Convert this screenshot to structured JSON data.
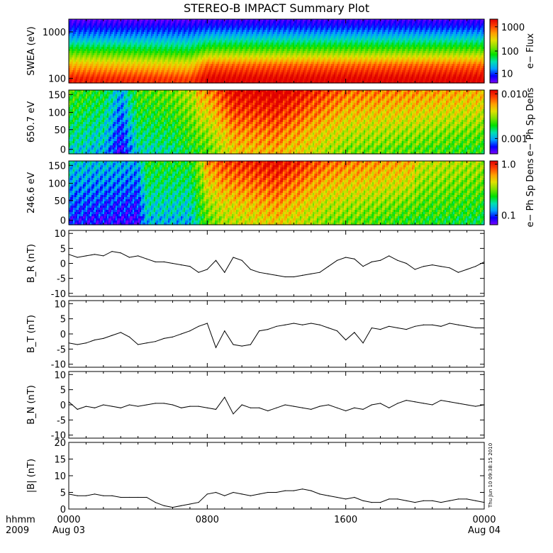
{
  "title": "STEREO-B IMPACT Summary Plot",
  "footer": {
    "hhmm_label": "hhmm",
    "year_label": "2009",
    "x_ticks": [
      "0000",
      "0800",
      "1600",
      "0000"
    ],
    "date_labels": [
      "Aug 03",
      "",
      "",
      "Aug 04"
    ]
  },
  "timestamp_text": "Thu Jun 10 09:38:15 2010",
  "colorscale": [
    "#7a00ff",
    "#0000ff",
    "#00a0ff",
    "#00e0b0",
    "#00e000",
    "#80e000",
    "#e0e000",
    "#ffa000",
    "#ff4000",
    "#e00000"
  ],
  "chart_data": [
    {
      "type": "heatmap",
      "ylabel": "SWEA (eV)",
      "yticks": [
        "1000",
        "100"
      ],
      "colorbar_label": "e− Flux",
      "colorbar_ticks": [
        "1000",
        "100",
        "10"
      ],
      "scale": "log",
      "x_range_hours": [
        0,
        24
      ],
      "profile": [
        {
          "hour": 0,
          "energy_eV": [
            [
              100,
              0.95
            ],
            [
              200,
              0.75
            ],
            [
              400,
              0.5
            ],
            [
              800,
              0.25
            ],
            [
              1600,
              0.08
            ]
          ]
        },
        {
          "hour": 7,
          "energy_eV": [
            [
              100,
              0.9
            ],
            [
              200,
              0.7
            ],
            [
              400,
              0.45
            ],
            [
              800,
              0.25
            ],
            [
              1600,
              0.08
            ]
          ]
        },
        {
          "hour": 8,
          "energy_eV": [
            [
              100,
              1.0
            ],
            [
              200,
              0.85
            ],
            [
              400,
              0.55
            ],
            [
              800,
              0.3
            ],
            [
              1600,
              0.1
            ]
          ]
        },
        {
          "hour": 24,
          "energy_eV": [
            [
              100,
              1.0
            ],
            [
              200,
              0.85
            ],
            [
              400,
              0.55
            ],
            [
              800,
              0.3
            ],
            [
              1600,
              0.1
            ]
          ]
        }
      ]
    },
    {
      "type": "heatmap",
      "ylabel": "650.7 eV",
      "yticks": [
        "150",
        "100",
        "50",
        "0"
      ],
      "colorbar_label": "e− Ph Sp Dens",
      "colorbar_ticks": [
        "0.010",
        "0.001"
      ],
      "scale": "log",
      "x_range_hours": [
        0,
        24
      ],
      "pitch_angle_range": [
        0,
        180
      ],
      "profile": [
        {
          "hour": 0,
          "level": 0.35
        },
        {
          "hour": 2,
          "level": 0.3
        },
        {
          "hour": 3,
          "level": 0.1
        },
        {
          "hour": 4,
          "level": 0.35
        },
        {
          "hour": 6,
          "level": 0.4
        },
        {
          "hour": 8,
          "level": 0.55
        },
        {
          "hour": 9.5,
          "level": 0.75
        },
        {
          "hour": 12,
          "level": 0.8
        },
        {
          "hour": 14,
          "level": 0.7
        },
        {
          "hour": 16,
          "level": 0.6
        },
        {
          "hour": 20,
          "level": 0.55
        },
        {
          "hour": 24,
          "level": 0.5
        }
      ]
    },
    {
      "type": "heatmap",
      "ylabel": "246.6 eV",
      "yticks": [
        "150",
        "100",
        "50",
        "0"
      ],
      "colorbar_label": "e− Ph Sp Dens",
      "colorbar_ticks": [
        "1.0",
        "0.1"
      ],
      "scale": "log",
      "x_range_hours": [
        0,
        24
      ],
      "pitch_angle_range": [
        0,
        180
      ],
      "profile": [
        {
          "hour": 0,
          "level": 0.15
        },
        {
          "hour": 4,
          "level": 0.1
        },
        {
          "hour": 4.5,
          "level": 0.3
        },
        {
          "hour": 7,
          "level": 0.3
        },
        {
          "hour": 8,
          "level": 0.55
        },
        {
          "hour": 9,
          "level": 0.65
        },
        {
          "hour": 12,
          "level": 0.75
        },
        {
          "hour": 15,
          "level": 0.6
        },
        {
          "hour": 20,
          "level": 0.5
        },
        {
          "hour": 24,
          "level": 0.45
        }
      ]
    },
    {
      "type": "line",
      "ylabel": "B_R (nT)",
      "yticks": [
        "10",
        "5",
        "0",
        "-5",
        "-10"
      ],
      "ylim": [
        -11,
        11
      ],
      "x": [
        0,
        0.5,
        1,
        1.5,
        2,
        2.5,
        3,
        3.5,
        4,
        4.5,
        5,
        5.5,
        6,
        6.5,
        7,
        7.5,
        8,
        8.5,
        9,
        9.5,
        10,
        10.5,
        11,
        11.5,
        12,
        12.5,
        13,
        13.5,
        14,
        14.5,
        15,
        15.5,
        16,
        16.5,
        17,
        17.5,
        18,
        18.5,
        19,
        19.5,
        20,
        20.5,
        21,
        21.5,
        22,
        22.5,
        23,
        23.5,
        24
      ],
      "y": [
        3,
        2,
        2.5,
        3,
        2.5,
        4,
        3.5,
        2,
        2.5,
        1.5,
        0.5,
        0.5,
        0,
        -0.5,
        -1,
        -3,
        -2,
        1,
        -3,
        2,
        1,
        -2,
        -3,
        -3.5,
        -4,
        -4.5,
        -4.5,
        -4,
        -3.5,
        -3,
        -1,
        1,
        2,
        1.5,
        -1,
        0.5,
        1,
        2.5,
        1,
        0,
        -2,
        -1,
        -0.5,
        -1,
        -1.5,
        -3,
        -2,
        -1,
        0.5
      ]
    },
    {
      "type": "line",
      "ylabel": "B_T (nT)",
      "yticks": [
        "10",
        "5",
        "0",
        "-5",
        "-10"
      ],
      "ylim": [
        -11,
        11
      ],
      "x": [
        0,
        0.5,
        1,
        1.5,
        2,
        2.5,
        3,
        3.5,
        4,
        4.5,
        5,
        5.5,
        6,
        6.5,
        7,
        7.5,
        8,
        8.5,
        9,
        9.5,
        10,
        10.5,
        11,
        11.5,
        12,
        12.5,
        13,
        13.5,
        14,
        14.5,
        15,
        15.5,
        16,
        16.5,
        17,
        17.5,
        18,
        18.5,
        19,
        19.5,
        20,
        20.5,
        21,
        21.5,
        22,
        22.5,
        23,
        23.5,
        24
      ],
      "y": [
        -3,
        -3.5,
        -3,
        -2,
        -1.5,
        -0.5,
        0.5,
        -1,
        -3.5,
        -3,
        -2.5,
        -1.5,
        -1,
        0,
        1,
        2.5,
        3.5,
        -4.5,
        1,
        -3.5,
        -4,
        -3.5,
        1,
        1.5,
        2.5,
        3,
        3.5,
        3,
        3.5,
        3,
        2,
        1,
        -2,
        0.5,
        -3,
        2,
        1.5,
        2.5,
        2,
        1.5,
        2.5,
        3,
        3,
        2.5,
        3.5,
        3,
        2.5,
        2,
        2
      ]
    },
    {
      "type": "line",
      "ylabel": "B_N (nT)",
      "yticks": [
        "10",
        "5",
        "0",
        "-5",
        "-10"
      ],
      "ylim": [
        -11,
        11
      ],
      "x": [
        0,
        0.5,
        1,
        1.5,
        2,
        2.5,
        3,
        3.5,
        4,
        4.5,
        5,
        5.5,
        6,
        6.5,
        7,
        7.5,
        8,
        8.5,
        9,
        9.5,
        10,
        10.5,
        11,
        11.5,
        12,
        12.5,
        13,
        13.5,
        14,
        14.5,
        15,
        15.5,
        16,
        16.5,
        17,
        17.5,
        18,
        18.5,
        19,
        19.5,
        20,
        20.5,
        21,
        21.5,
        22,
        22.5,
        23,
        23.5,
        24
      ],
      "y": [
        1,
        -1.5,
        -0.5,
        -1,
        0,
        -0.5,
        -1,
        0,
        -0.5,
        0,
        0.5,
        0.5,
        0,
        -1,
        -0.5,
        -0.5,
        -1,
        -1.5,
        2.5,
        -3,
        0,
        -1,
        -1,
        -2,
        -1,
        0,
        -0.5,
        -1,
        -1.5,
        -0.5,
        0,
        -1,
        -2,
        -1,
        -1.5,
        0,
        0.5,
        -1,
        0.5,
        1.5,
        1,
        0.5,
        0,
        1.5,
        1,
        0.5,
        0,
        -0.5,
        0
      ]
    },
    {
      "type": "line",
      "ylabel": "|B| (nT)",
      "yticks": [
        "20",
        "15",
        "10",
        "5",
        "0"
      ],
      "ylim": [
        0,
        20
      ],
      "x": [
        0,
        0.5,
        1,
        1.5,
        2,
        2.5,
        3,
        3.5,
        4,
        4.5,
        5,
        5.5,
        6,
        6.5,
        7,
        7.5,
        8,
        8.5,
        9,
        9.5,
        10,
        10.5,
        11,
        11.5,
        12,
        12.5,
        13,
        13.5,
        14,
        14.5,
        15,
        15.5,
        16,
        16.5,
        17,
        17.5,
        18,
        18.5,
        19,
        19.5,
        20,
        20.5,
        21,
        21.5,
        22,
        22.5,
        23,
        23.5,
        24
      ],
      "y": [
        4.5,
        4,
        4,
        4.5,
        4,
        4,
        3.5,
        3.5,
        3.5,
        3.5,
        2,
        1,
        0.5,
        1,
        1.5,
        2,
        4.5,
        5,
        4,
        5,
        4.5,
        4,
        4.5,
        5,
        5,
        5.5,
        5.5,
        6,
        5.5,
        4.5,
        4,
        3.5,
        3,
        3.5,
        2.5,
        2,
        2,
        3,
        3,
        2.5,
        2,
        2.5,
        2.5,
        2,
        2.5,
        3,
        3,
        2.5,
        2
      ]
    }
  ]
}
